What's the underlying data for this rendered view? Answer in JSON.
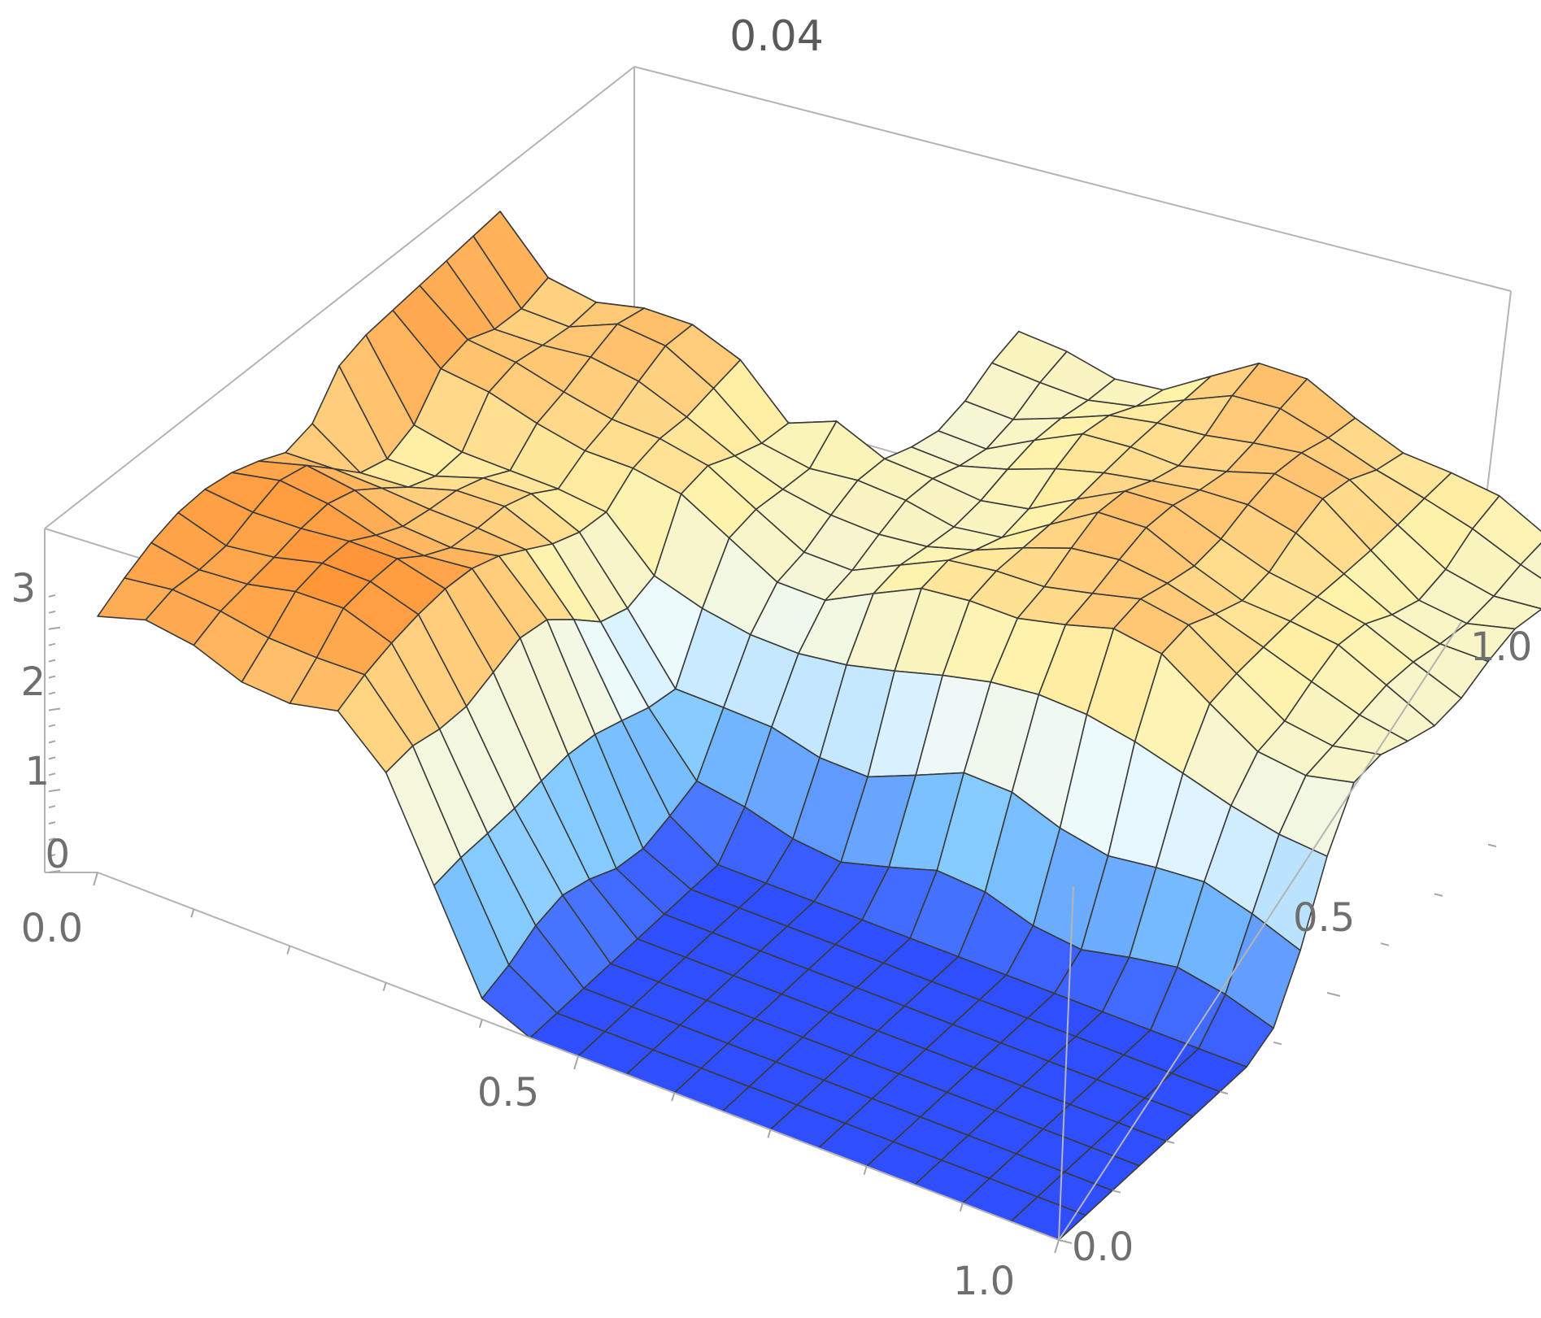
{
  "chart_data": {
    "type": "surface3d",
    "title": "0.04",
    "x_ticks": [
      "0.0",
      "0.5",
      "1.0"
    ],
    "y_ticks": [
      "0.0",
      "0.5",
      "1.0"
    ],
    "z_ticks": [
      "0",
      "1",
      "2",
      "3"
    ],
    "xlim": [
      0,
      1
    ],
    "ylim": [
      0,
      1
    ],
    "zlim": [
      0,
      3.5
    ],
    "grid_lines": 20,
    "colormap": [
      "#2f4fff",
      "#7fc8ff",
      "#ffffff",
      "#fff2a8",
      "#ff8a2a"
    ],
    "box_color": "#b4b4b4",
    "mesh_color": "#3a3a3a"
  }
}
